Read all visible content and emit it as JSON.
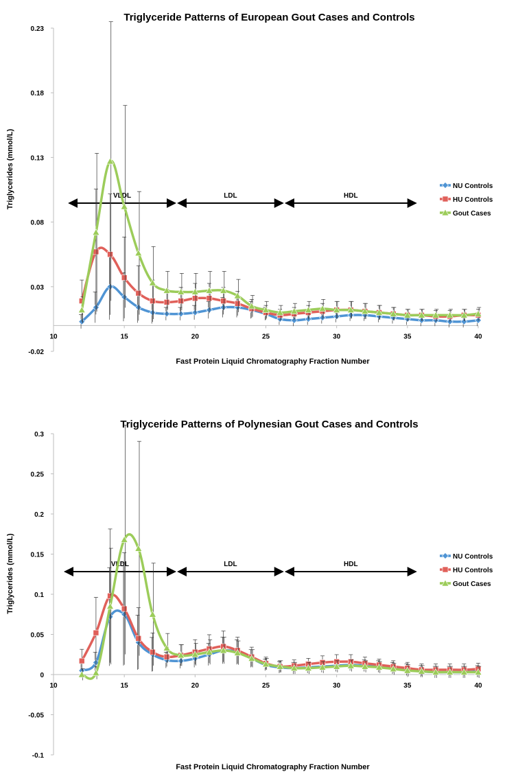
{
  "chart_data": [
    {
      "type": "line",
      "title": "Triglyceride Patterns of European Gout Cases and Controls",
      "xlabel": "Fast Protein Liquid Chromatography Fraction Number",
      "ylabel": "Triglycerides (mmol/L)",
      "xlim": [
        10,
        40
      ],
      "ylim": [
        -0.02,
        0.23
      ],
      "xticks": [
        10,
        15,
        20,
        25,
        30,
        35,
        40
      ],
      "yticks": [
        -0.02,
        0.03,
        0.08,
        0.13,
        0.18,
        0.23
      ],
      "x": [
        12,
        13,
        14,
        15,
        16,
        17,
        18,
        19,
        20,
        21,
        22,
        23,
        24,
        25,
        26,
        27,
        28,
        29,
        30,
        31,
        32,
        33,
        34,
        35,
        36,
        37,
        38,
        39,
        40
      ],
      "series": [
        {
          "name": "NU Controls",
          "color": "#4f94d4",
          "marker": "diamond",
          "values": [
            0.003,
            0.014,
            0.03,
            0.022,
            0.014,
            0.01,
            0.009,
            0.009,
            0.01,
            0.012,
            0.014,
            0.014,
            0.012,
            0.009,
            0.005,
            0.004,
            0.005,
            0.006,
            0.007,
            0.008,
            0.008,
            0.007,
            0.006,
            0.005,
            0.004,
            0.004,
            0.003,
            0.003,
            0.004
          ]
        },
        {
          "name": "HU Controls",
          "color": "#e0605a",
          "marker": "square",
          "values": [
            0.019,
            0.057,
            0.055,
            0.037,
            0.025,
            0.019,
            0.018,
            0.019,
            0.021,
            0.021,
            0.019,
            0.017,
            0.013,
            0.01,
            0.008,
            0.009,
            0.01,
            0.011,
            0.012,
            0.012,
            0.011,
            0.01,
            0.009,
            0.008,
            0.008,
            0.007,
            0.007,
            0.008,
            0.008
          ]
        },
        {
          "name": "Gout Cases",
          "color": "#9ccc5a",
          "marker": "triangle",
          "values": [
            0.012,
            0.072,
            0.127,
            0.092,
            0.056,
            0.033,
            0.027,
            0.026,
            0.026,
            0.027,
            0.027,
            0.023,
            0.015,
            0.012,
            0.01,
            0.011,
            0.012,
            0.013,
            0.012,
            0.012,
            0.011,
            0.01,
            0.009,
            0.008,
            0.008,
            0.008,
            0.008,
            0.008,
            0.009
          ]
        }
      ],
      "regions": [
        {
          "label": "VLDL",
          "start": 11,
          "end": 18.7
        },
        {
          "label": "LDL",
          "start": 18.7,
          "end": 26.3
        },
        {
          "label": "HDL",
          "start": 26.3,
          "end": 35.7
        }
      ],
      "legend_position": "right",
      "grid": false
    },
    {
      "type": "line",
      "title": "Triglyceride Patterns of Polynesian Gout Cases and Controls",
      "xlabel": "Fast Protein Liquid Chromatography Fraction Number",
      "ylabel": "Triglycerides (mmol/L)",
      "xlim": [
        10,
        40
      ],
      "ylim": [
        -0.1,
        0.3
      ],
      "xticks": [
        10,
        15,
        20,
        25,
        30,
        35,
        40
      ],
      "yticks": [
        -0.1,
        -0.05,
        0,
        0.05,
        0.1,
        0.15,
        0.2,
        0.25,
        0.3
      ],
      "x": [
        12,
        13,
        14,
        15,
        16,
        17,
        18,
        19,
        20,
        21,
        22,
        23,
        24,
        25,
        26,
        27,
        28,
        29,
        30,
        31,
        32,
        33,
        34,
        35,
        36,
        37,
        38,
        39,
        40
      ],
      "series": [
        {
          "name": "NU Controls",
          "color": "#4f94d4",
          "marker": "diamond",
          "values": [
            0.005,
            0.015,
            0.072,
            0.075,
            0.04,
            0.025,
            0.018,
            0.017,
            0.02,
            0.025,
            0.03,
            0.028,
            0.02,
            0.012,
            0.009,
            0.008,
            0.009,
            0.01,
            0.011,
            0.012,
            0.011,
            0.01,
            0.008,
            0.006,
            0.004,
            0.003,
            0.003,
            0.003,
            0.004
          ]
        },
        {
          "name": "HU Controls",
          "color": "#e0605a",
          "marker": "square",
          "values": [
            0.017,
            0.052,
            0.098,
            0.082,
            0.045,
            0.028,
            0.022,
            0.024,
            0.028,
            0.032,
            0.035,
            0.03,
            0.022,
            0.014,
            0.01,
            0.011,
            0.013,
            0.015,
            0.016,
            0.016,
            0.014,
            0.012,
            0.01,
            0.008,
            0.006,
            0.006,
            0.006,
            0.006,
            0.007
          ]
        },
        {
          "name": "Gout Cases",
          "color": "#9ccc5a",
          "marker": "triangle",
          "values": [
            0.0,
            0.002,
            0.085,
            0.168,
            0.157,
            0.075,
            0.033,
            0.024,
            0.025,
            0.028,
            0.03,
            0.027,
            0.02,
            0.013,
            0.01,
            0.008,
            0.008,
            0.009,
            0.01,
            0.011,
            0.01,
            0.009,
            0.007,
            0.005,
            0.004,
            0.003,
            0.003,
            0.003,
            0.003
          ]
        }
      ],
      "regions": [
        {
          "label": "VLDL",
          "start": 10.7,
          "end": 18.7
        },
        {
          "label": "LDL",
          "start": 18.7,
          "end": 26.3
        },
        {
          "label": "HDL",
          "start": 26.3,
          "end": 35.7
        }
      ],
      "legend_position": "right",
      "grid": false
    }
  ]
}
